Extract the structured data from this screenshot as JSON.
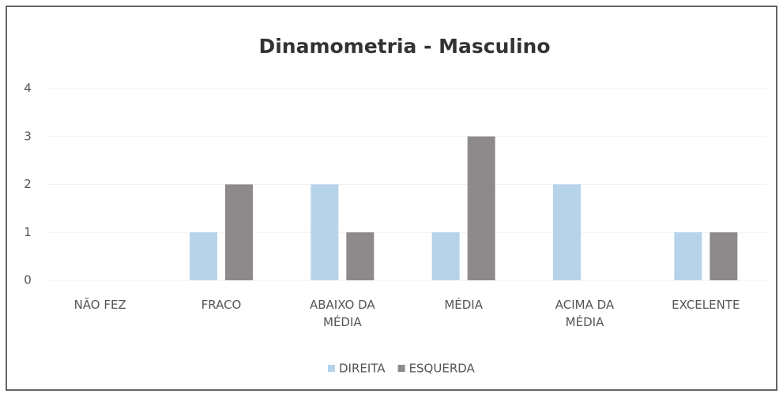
{
  "chart_data": {
    "type": "bar",
    "title": "Dinamometria - Masculino",
    "categories": [
      "NÃO FEZ",
      "FRACO",
      "ABAIXO DA MÉDIA",
      "MÉDIA",
      "ACIMA DA MÉDIA",
      "EXCELENTE"
    ],
    "series": [
      {
        "name": "DIREITA",
        "color": "#b7d3ea",
        "values": [
          0,
          1,
          2,
          1,
          2,
          1
        ]
      },
      {
        "name": "ESQUERDA",
        "color": "#8e8a8c",
        "values": [
          0,
          2,
          1,
          3,
          0,
          1
        ]
      }
    ],
    "ylim": [
      0,
      4
    ],
    "yticks": [
      0,
      1,
      2,
      3,
      4
    ],
    "grid": true,
    "legend": "bottom"
  }
}
